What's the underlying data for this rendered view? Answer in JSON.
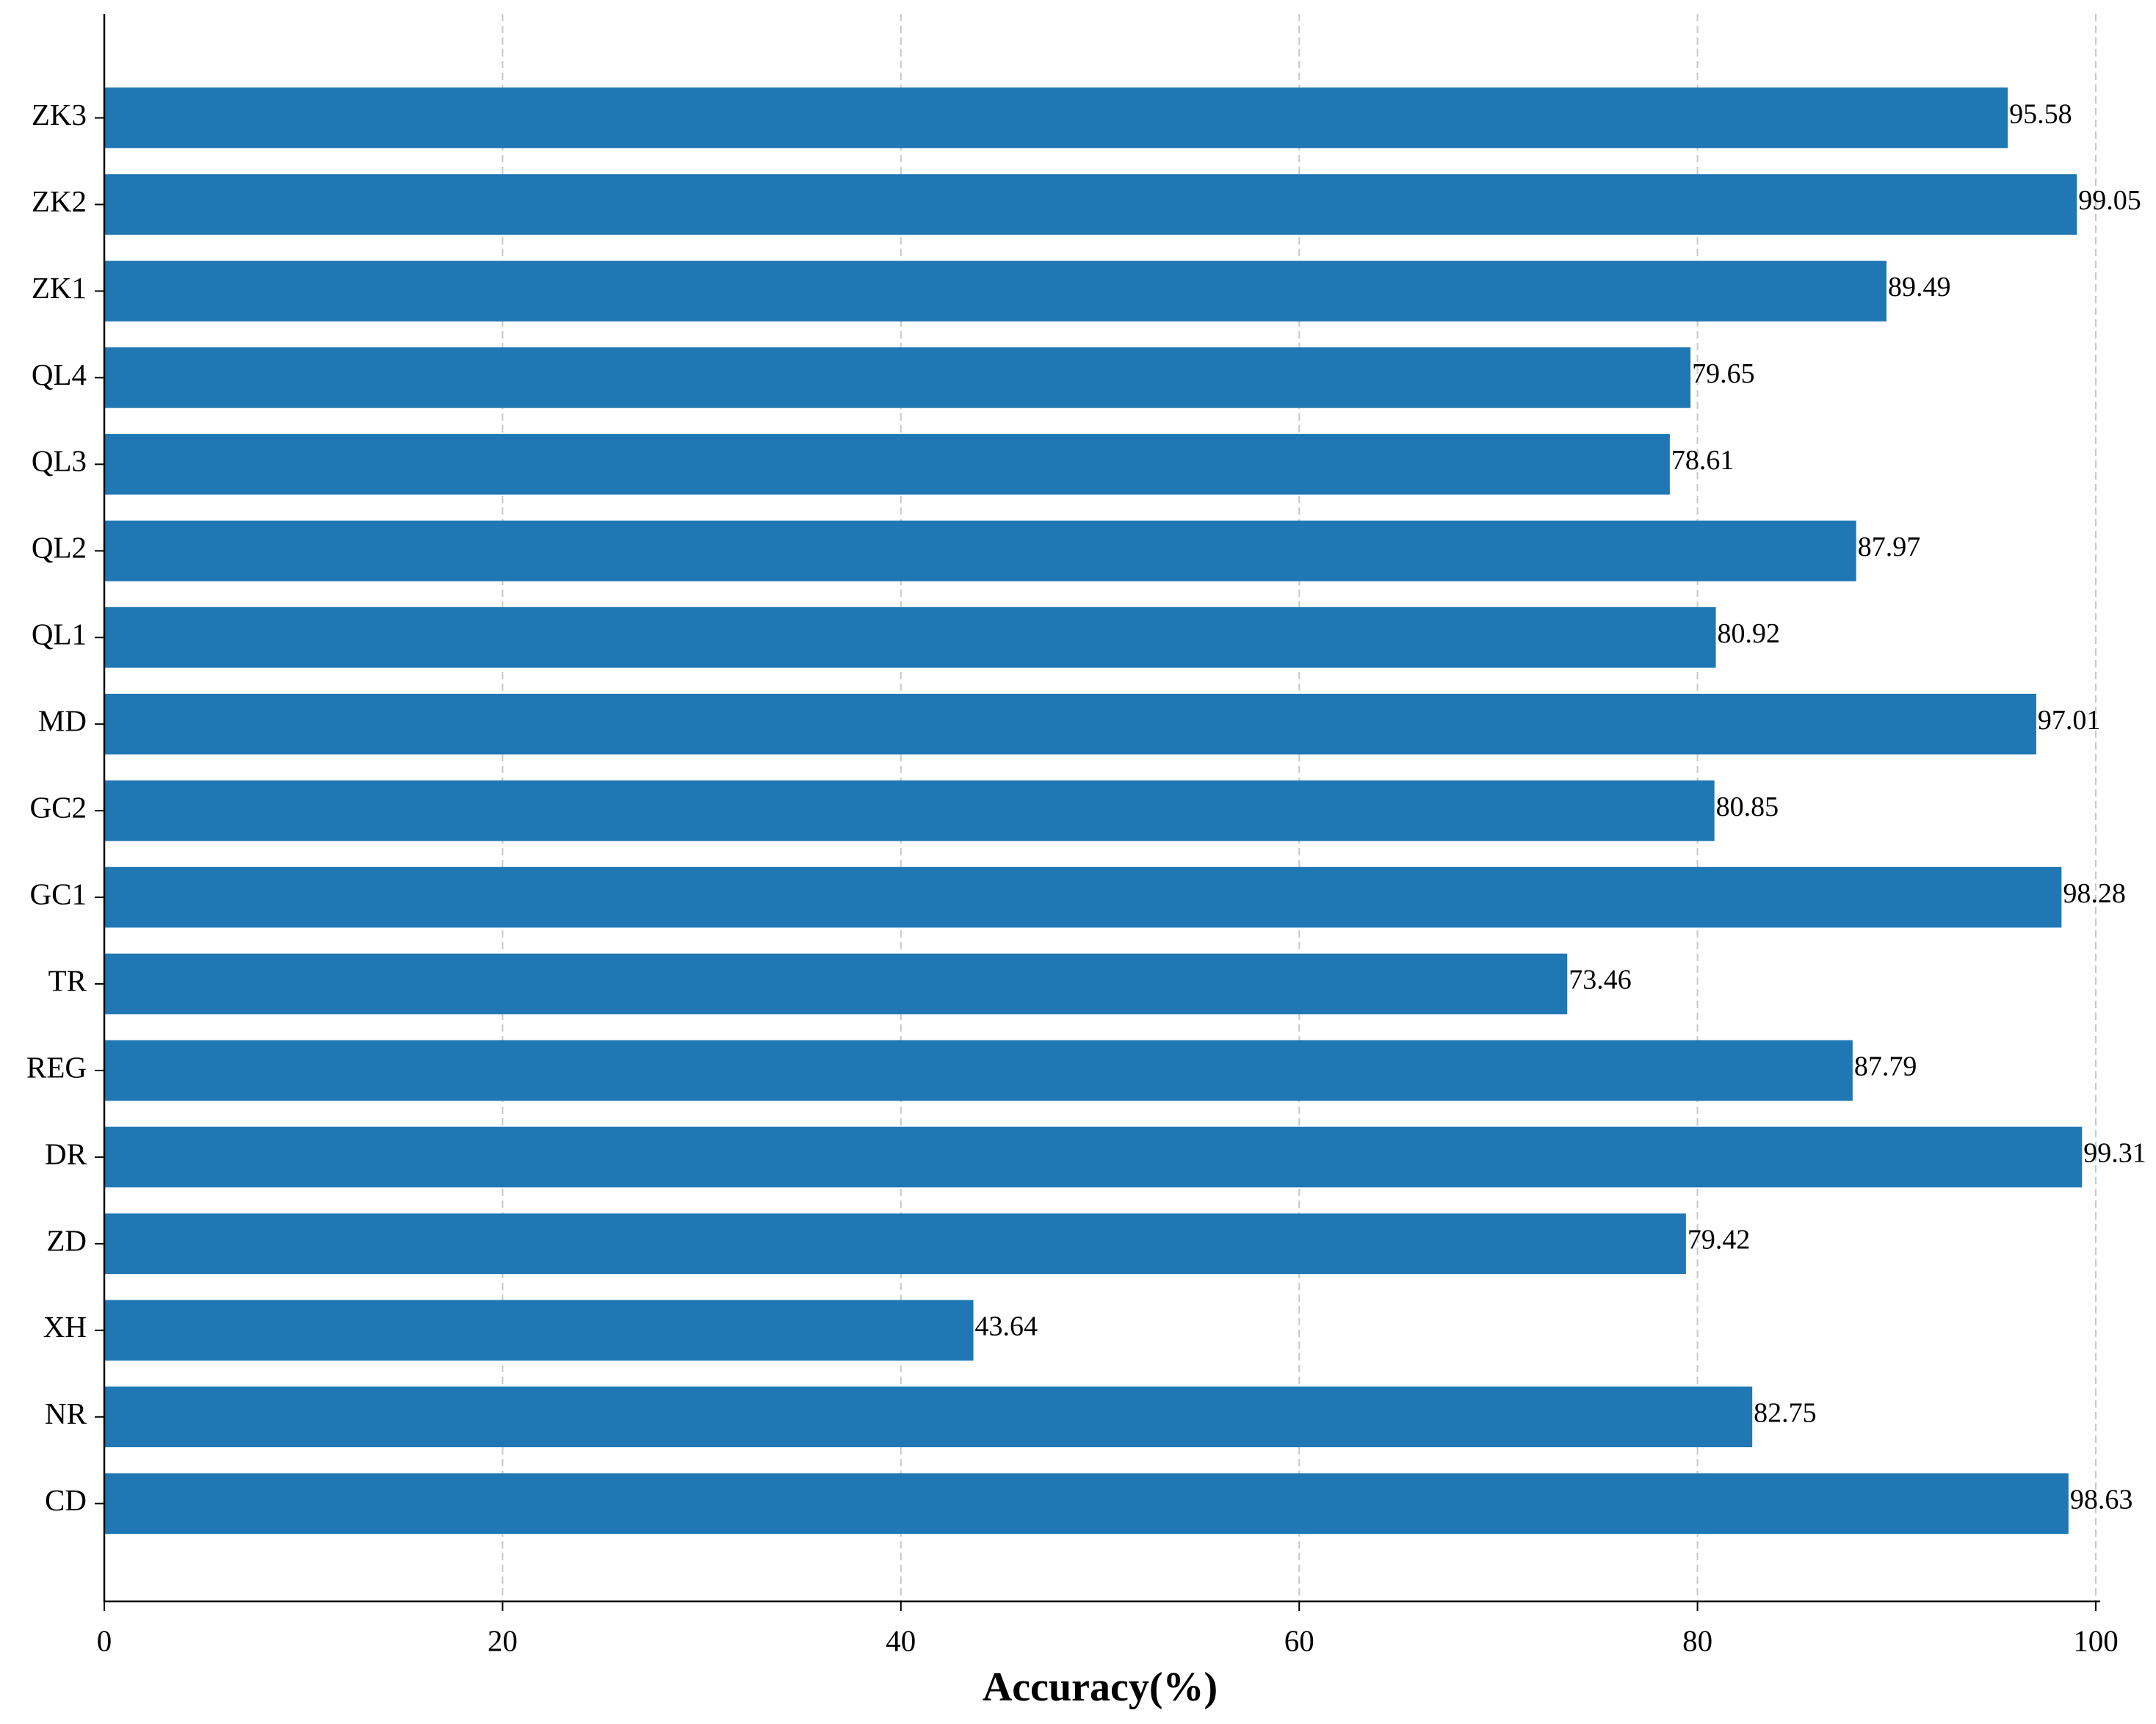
{
  "chart_data": {
    "type": "barh",
    "x_label": "Accuracy(%)",
    "categories": [
      "CD",
      "NR",
      "XH",
      "ZD",
      "DR",
      "REG",
      "TR",
      "GC1",
      "GC2",
      "MD",
      "QL1",
      "QL2",
      "QL3",
      "QL4",
      "ZK1",
      "ZK2",
      "ZK3"
    ],
    "values": [
      98.63,
      82.75,
      43.64,
      79.42,
      99.31,
      87.79,
      73.46,
      98.28,
      80.85,
      97.01,
      80.92,
      87.97,
      78.61,
      79.65,
      89.49,
      99.05,
      95.58
    ],
    "color": "#1f77b4",
    "xlim": [
      0,
      100
    ],
    "xticks": [
      0,
      20,
      40,
      60,
      80,
      100
    ],
    "grid": true
  }
}
